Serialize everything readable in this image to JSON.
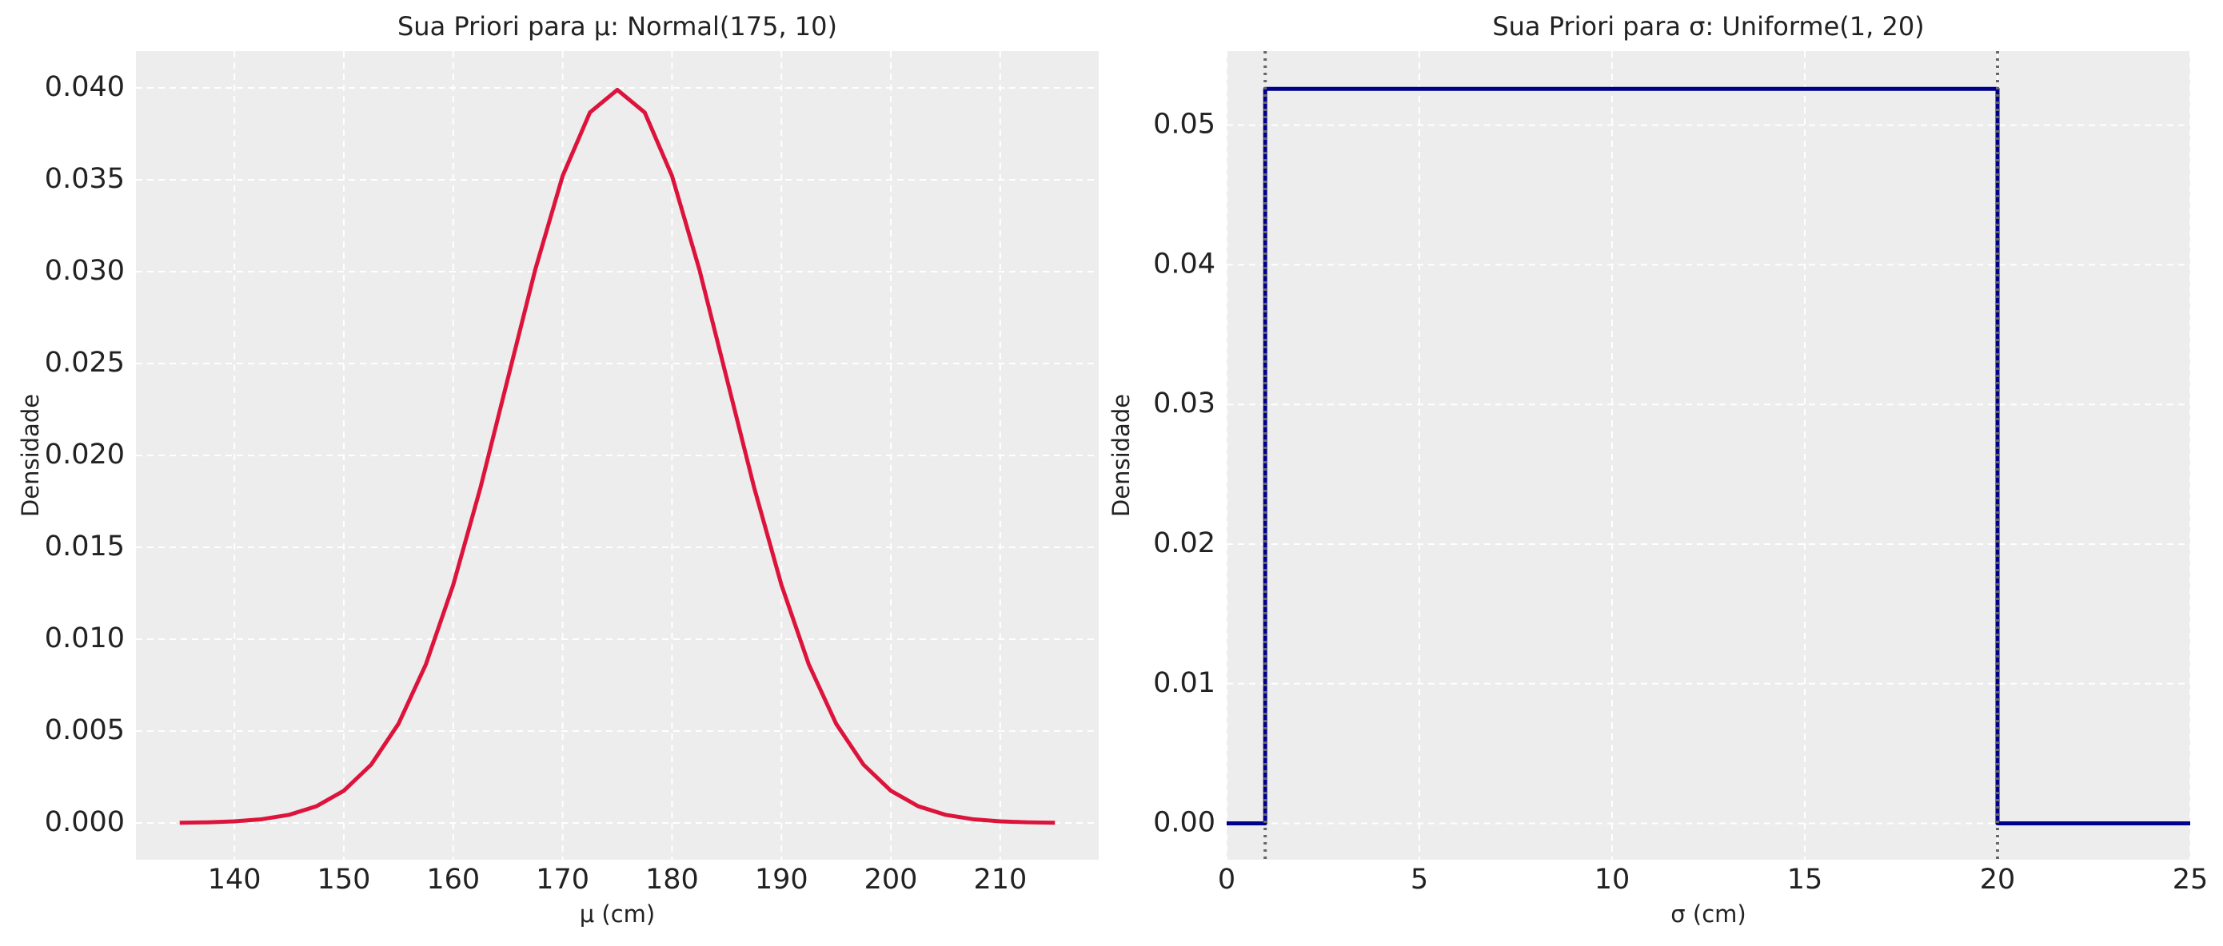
{
  "chart_data": [
    {
      "type": "line",
      "title": "Sua Priori para μ: Normal(175, 10)",
      "xlabel": "μ (cm)",
      "ylabel": "Densidade",
      "x": [
        135,
        137.5,
        140,
        142.5,
        145,
        147.5,
        150,
        152.5,
        155,
        157.5,
        160,
        162.5,
        165,
        167.5,
        170,
        172.5,
        175,
        177.5,
        180,
        182.5,
        185,
        187.5,
        190,
        192.5,
        195,
        197.5,
        200,
        202.5,
        205,
        207.5,
        210,
        212.5,
        215
      ],
      "series": [
        {
          "color": "#dc143c",
          "values": [
            1.34e-05,
            3.53e-05,
            8.73e-05,
            0.000203,
            0.000443,
            0.00091,
            0.001753,
            0.003174,
            0.005399,
            0.008628,
            0.012952,
            0.018265,
            0.024197,
            0.030114,
            0.035207,
            0.038667,
            0.039894,
            0.038667,
            0.035207,
            0.030114,
            0.024197,
            0.018265,
            0.012952,
            0.008628,
            0.005399,
            0.003174,
            0.001753,
            0.00091,
            0.000443,
            0.000203,
            8.73e-05,
            3.53e-05,
            1.34e-05
          ]
        }
      ],
      "xlim": [
        131,
        219
      ],
      "xticks": [
        140,
        150,
        160,
        170,
        180,
        190,
        200,
        210
      ],
      "ylim": [
        -0.002,
        0.042
      ],
      "yticks": [
        {
          "value": 0,
          "label": "0.000"
        },
        {
          "value": 0.005,
          "label": "0.005"
        },
        {
          "value": 0.01,
          "label": "0.010"
        },
        {
          "value": 0.015,
          "label": "0.015"
        },
        {
          "value": 0.02,
          "label": "0.020"
        },
        {
          "value": 0.025,
          "label": "0.025"
        },
        {
          "value": 0.03,
          "label": "0.030"
        },
        {
          "value": 0.035,
          "label": "0.035"
        },
        {
          "value": 0.04,
          "label": "0.040"
        }
      ],
      "grid": true
    },
    {
      "type": "line",
      "title": "Sua Priori para σ: Uniforme(1, 20)",
      "xlabel": "σ (cm)",
      "ylabel": "Densidade",
      "x": [
        0,
        1,
        1,
        20,
        20,
        25
      ],
      "series": [
        {
          "color": "#00008b",
          "values": [
            0,
            0,
            0.0526,
            0.0526,
            0,
            0
          ]
        }
      ],
      "vlines": [
        1,
        20
      ],
      "vline_color": "#666666",
      "xlim": [
        0,
        25
      ],
      "xticks": [
        0,
        5,
        10,
        15,
        20,
        25
      ],
      "ylim": [
        -0.0026,
        0.0553
      ],
      "yticks": [
        {
          "value": 0,
          "label": "0.00"
        },
        {
          "value": 0.01,
          "label": "0.01"
        },
        {
          "value": 0.02,
          "label": "0.02"
        },
        {
          "value": 0.03,
          "label": "0.03"
        },
        {
          "value": 0.04,
          "label": "0.04"
        },
        {
          "value": 0.05,
          "label": "0.05"
        }
      ],
      "grid": true
    }
  ]
}
